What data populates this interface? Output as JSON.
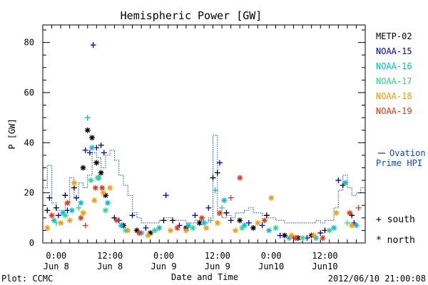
{
  "chart_data": {
    "type": "scatter",
    "title": "Hemispheric Power [GW]",
    "ylabel": "P [GW]",
    "xlabel": "Date and Time",
    "ylim": [
      0,
      87
    ],
    "xlim": [
      "2012-06-07T21:00",
      "2012-06-10T21:00"
    ],
    "yticks": [
      0,
      20,
      40,
      60,
      80
    ],
    "xticks": [
      {
        "t": "2012-06-08T00:00",
        "time": "0:00",
        "date": "Jun 8"
      },
      {
        "t": "2012-06-08T12:00",
        "time": "12:00",
        "date": "Jun 8"
      },
      {
        "t": "2012-06-09T00:00",
        "time": "0:00",
        "date": "Jun 9"
      },
      {
        "t": "2012-06-09T12:00",
        "time": "12:00",
        "date": "Jun 9"
      },
      {
        "t": "2012-06-10T00:00",
        "time": "0:00",
        "date": "Jun10"
      },
      {
        "t": "2012-06-10T12:00",
        "time": "12:00",
        "date": "Jun10"
      }
    ],
    "legend_placement": "right",
    "series": [
      {
        "name": "METP-02",
        "color": "#000000",
        "points": [
          [
            "2012-06-07T22:00",
            13,
            "+"
          ],
          [
            "2012-06-08T00:00",
            14,
            "+"
          ],
          [
            "2012-06-08T02:00",
            19,
            "+"
          ],
          [
            "2012-06-08T04:00",
            22,
            "+"
          ],
          [
            "2012-06-08T06:00",
            30,
            "*"
          ],
          [
            "2012-06-08T07:00",
            45,
            "*"
          ],
          [
            "2012-06-08T08:00",
            42,
            "*"
          ],
          [
            "2012-06-08T09:00",
            32,
            "*"
          ],
          [
            "2012-06-08T10:00",
            28,
            "*"
          ],
          [
            "2012-06-08T11:00",
            19,
            "*"
          ],
          [
            "2012-06-08T13:00",
            10,
            "+"
          ],
          [
            "2012-06-08T15:00",
            7,
            "*"
          ],
          [
            "2012-06-08T18:00",
            5,
            "*"
          ],
          [
            "2012-06-08T21:00",
            4,
            "*"
          ],
          [
            "2012-06-09T00:00",
            9,
            "+"
          ],
          [
            "2012-06-09T02:00",
            9,
            "+"
          ],
          [
            "2012-06-09T05:00",
            6,
            "*"
          ],
          [
            "2012-06-09T08:00",
            8,
            "*"
          ],
          [
            "2012-06-09T11:00",
            26,
            "+"
          ],
          [
            "2012-06-09T12:00",
            28,
            "+"
          ],
          [
            "2012-06-09T14:00",
            12,
            "+"
          ],
          [
            "2012-06-09T17:00",
            9,
            "*"
          ],
          [
            "2012-06-09T20:00",
            6,
            "*"
          ],
          [
            "2012-06-09T23:00",
            11,
            "+"
          ],
          [
            "2012-06-10T03:00",
            3,
            "*"
          ],
          [
            "2012-06-10T06:00",
            2,
            "*"
          ],
          [
            "2012-06-10T09:00",
            3,
            "*"
          ],
          [
            "2012-06-10T12:00",
            5,
            "+"
          ],
          [
            "2012-06-10T16:00",
            23,
            "+"
          ],
          [
            "2012-06-10T18:00",
            11,
            "+"
          ]
        ]
      },
      {
        "name": "NOAA-15",
        "color": "#0000cc",
        "points": [
          [
            "2012-06-07T22:30",
            18,
            "+"
          ],
          [
            "2012-06-08T00:30",
            11,
            "+"
          ],
          [
            "2012-06-08T02:30",
            13,
            "+"
          ],
          [
            "2012-06-08T04:30",
            18,
            "+"
          ],
          [
            "2012-06-08T06:30",
            37,
            "+"
          ],
          [
            "2012-06-08T07:30",
            36,
            "+"
          ],
          [
            "2012-06-08T08:15",
            79,
            "+"
          ],
          [
            "2012-06-08T09:00",
            38,
            "+"
          ],
          [
            "2012-06-08T10:00",
            39,
            "+"
          ],
          [
            "2012-06-08T10:40",
            36,
            "+"
          ],
          [
            "2012-06-08T14:00",
            9,
            "+"
          ],
          [
            "2012-06-08T17:00",
            11,
            "+"
          ],
          [
            "2012-06-08T20:00",
            6,
            "+"
          ],
          [
            "2012-06-09T00:30",
            19,
            "+"
          ],
          [
            "2012-06-09T03:30",
            7,
            "+"
          ],
          [
            "2012-06-09T07:00",
            11,
            "+"
          ],
          [
            "2012-06-09T10:00",
            14,
            "+"
          ],
          [
            "2012-06-09T12:30",
            32,
            "+"
          ],
          [
            "2012-06-09T15:00",
            9,
            "+"
          ],
          [
            "2012-06-09T19:00",
            8,
            "+"
          ],
          [
            "2012-06-09T22:00",
            7,
            "+"
          ],
          [
            "2012-06-10T02:00",
            3,
            "+"
          ],
          [
            "2012-06-10T05:00",
            2,
            "+"
          ],
          [
            "2012-06-10T08:00",
            2,
            "+"
          ],
          [
            "2012-06-10T11:00",
            4,
            "+"
          ],
          [
            "2012-06-10T15:00",
            25,
            "+"
          ],
          [
            "2012-06-10T18:30",
            8,
            "+"
          ]
        ]
      },
      {
        "name": "NOAA-16",
        "color": "#00bbdd",
        "points": [
          [
            "2012-06-07T23:30",
            9,
            "*"
          ],
          [
            "2012-06-08T01:30",
            12,
            "*"
          ],
          [
            "2012-06-08T03:30",
            13,
            "*"
          ],
          [
            "2012-06-08T05:30",
            16,
            "*"
          ],
          [
            "2012-06-08T07:00",
            50,
            "+"
          ],
          [
            "2012-06-08T08:00",
            38,
            "*"
          ],
          [
            "2012-06-08T09:30",
            26,
            "*"
          ],
          [
            "2012-06-08T11:30",
            16,
            "*"
          ],
          [
            "2012-06-08T14:30",
            7,
            "*"
          ],
          [
            "2012-06-08T19:00",
            4,
            "*"
          ],
          [
            "2012-06-08T23:00",
            6,
            "*"
          ],
          [
            "2012-06-09T05:30",
            7,
            "*"
          ],
          [
            "2012-06-09T09:00",
            8,
            "*"
          ],
          [
            "2012-06-09T11:30",
            21,
            "+"
          ],
          [
            "2012-06-09T13:30",
            17,
            "*"
          ],
          [
            "2012-06-09T18:00",
            7,
            "*"
          ],
          [
            "2012-06-09T23:30",
            5,
            "*"
          ],
          [
            "2012-06-10T04:00",
            2,
            "*"
          ],
          [
            "2012-06-10T10:00",
            2,
            "*"
          ],
          [
            "2012-06-10T14:00",
            6,
            "*"
          ],
          [
            "2012-06-10T16:30",
            24,
            "*"
          ],
          [
            "2012-06-10T19:00",
            7,
            "*"
          ]
        ]
      },
      {
        "name": "NOAA-17",
        "color": "#22dd88",
        "points": [
          [
            "2012-06-08T00:00",
            8,
            "+"
          ],
          [
            "2012-06-08T02:00",
            11,
            "*"
          ],
          [
            "2012-06-08T05:00",
            14,
            "+"
          ],
          [
            "2012-06-08T07:45",
            25,
            "*"
          ],
          [
            "2012-06-08T09:15",
            26,
            "*"
          ],
          [
            "2012-06-08T11:00",
            13,
            "*"
          ],
          [
            "2012-06-08T15:30",
            5,
            "*"
          ],
          [
            "2012-06-08T22:00",
            5,
            "*"
          ],
          [
            "2012-06-09T06:30",
            6,
            "*"
          ],
          [
            "2012-06-09T10:30",
            9,
            "+"
          ],
          [
            "2012-06-09T13:00",
            14,
            "+"
          ],
          [
            "2012-06-09T17:30",
            6,
            "*"
          ],
          [
            "2012-06-10T01:00",
            6,
            "*"
          ],
          [
            "2012-06-10T07:00",
            2,
            "*"
          ],
          [
            "2012-06-10T13:00",
            5,
            "*"
          ],
          [
            "2012-06-10T17:00",
            8,
            "+"
          ]
        ]
      },
      {
        "name": "NOAA-18",
        "color": "#ff9900",
        "points": [
          [
            "2012-06-07T22:00",
            6,
            "*"
          ],
          [
            "2012-06-08T01:00",
            8,
            "*"
          ],
          [
            "2012-06-08T03:00",
            9,
            "*"
          ],
          [
            "2012-06-08T04:00",
            24,
            "*"
          ],
          [
            "2012-06-08T06:00",
            12,
            "*"
          ],
          [
            "2012-06-08T08:30",
            17,
            "*"
          ],
          [
            "2012-06-08T10:30",
            20,
            "*"
          ],
          [
            "2012-06-08T12:00",
            22,
            "*"
          ],
          [
            "2012-06-08T16:00",
            5,
            "*"
          ],
          [
            "2012-06-08T20:30",
            3,
            "*"
          ],
          [
            "2012-06-09T01:30",
            5,
            "*"
          ],
          [
            "2012-06-09T05:00",
            5,
            "*"
          ],
          [
            "2012-06-09T09:30",
            6,
            "*"
          ],
          [
            "2012-06-09T12:00",
            8,
            "*"
          ],
          [
            "2012-06-09T16:00",
            5,
            "*"
          ],
          [
            "2012-06-09T21:00",
            8,
            "*"
          ],
          [
            "2012-06-10T00:00",
            18,
            "*"
          ],
          [
            "2012-06-10T04:30",
            3,
            "*"
          ],
          [
            "2012-06-10T09:30",
            3,
            "*"
          ],
          [
            "2012-06-10T14:30",
            12,
            "*"
          ],
          [
            "2012-06-10T18:00",
            7,
            "*"
          ]
        ]
      },
      {
        "name": "NOAA-19",
        "color": "#ee3311",
        "points": [
          [
            "2012-06-07T23:00",
            11,
            "*"
          ],
          [
            "2012-06-08T02:30",
            16,
            "*"
          ],
          [
            "2012-06-08T05:30",
            10,
            "*"
          ],
          [
            "2012-06-08T06:30",
            7,
            "+"
          ],
          [
            "2012-06-08T08:45",
            22,
            "*"
          ],
          [
            "2012-06-08T10:15",
            22,
            "*"
          ],
          [
            "2012-06-08T13:30",
            9,
            "*"
          ],
          [
            "2012-06-08T18:30",
            4,
            "*"
          ],
          [
            "2012-06-09T03:00",
            6,
            "*"
          ],
          [
            "2012-06-09T08:30",
            10,
            "*"
          ],
          [
            "2012-06-09T12:30",
            12,
            "*"
          ],
          [
            "2012-06-09T15:00",
            18,
            "+"
          ],
          [
            "2012-06-09T17:00",
            26,
            "*"
          ],
          [
            "2012-06-09T22:30",
            9,
            "*"
          ],
          [
            "2012-06-10T05:30",
            2,
            "*"
          ],
          [
            "2012-06-10T11:30",
            2,
            "*"
          ],
          [
            "2012-06-10T17:30",
            12,
            "*"
          ],
          [
            "2012-06-10T19:30",
            14,
            "+"
          ]
        ]
      }
    ],
    "hpi_step": {
      "name": "Ovation Prime HPI",
      "color": "#1144cc",
      "x_start": "2012-06-07T21:00",
      "step_hours": 1,
      "values": [
        22,
        31,
        16,
        13,
        13,
        16,
        26,
        18,
        24,
        22,
        27,
        36,
        34,
        30,
        35,
        37,
        33,
        27,
        23,
        19,
        12,
        10,
        8,
        8,
        8,
        8,
        9,
        10,
        10,
        9,
        9,
        9,
        8,
        8,
        9,
        9,
        8,
        10,
        43,
        11,
        10,
        11,
        10,
        12,
        12,
        13,
        14,
        12,
        12,
        11,
        10,
        10,
        9,
        9,
        8,
        8,
        8,
        8,
        8,
        8,
        8,
        9,
        8,
        9,
        9,
        14,
        21,
        27,
        22,
        19,
        20,
        22
      ]
    },
    "symbol_key": [
      {
        "symbol": "+",
        "label": "south"
      },
      {
        "symbol": "*",
        "label": "north"
      }
    ]
  },
  "footer": {
    "left": "Plot: CCMC",
    "right": "2012/06/10 21:00:08"
  }
}
